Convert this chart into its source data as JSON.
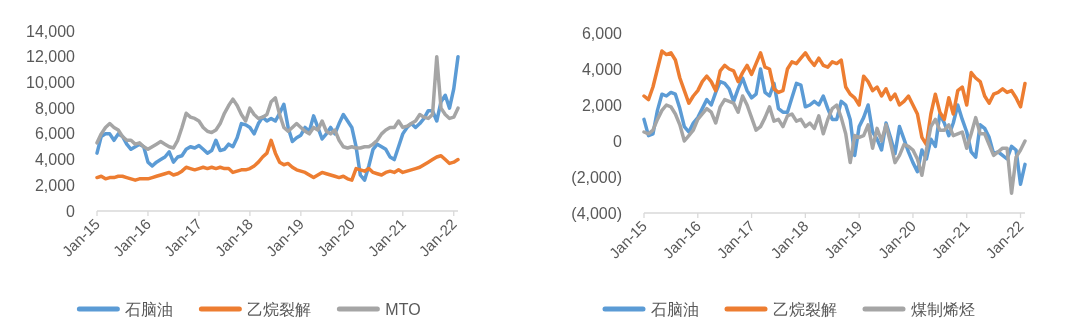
{
  "chart_data": [
    {
      "type": "line",
      "legend": "bottom",
      "x": [
        "2015-01",
        "2015-02",
        "2015-03",
        "2015-04",
        "2015-05",
        "2015-06",
        "2015-07",
        "2015-08",
        "2015-09",
        "2015-10",
        "2015-11",
        "2015-12",
        "2016-01",
        "2016-02",
        "2016-03",
        "2016-04",
        "2016-05",
        "2016-06",
        "2016-07",
        "2016-08",
        "2016-09",
        "2016-10",
        "2016-11",
        "2016-12",
        "2017-01",
        "2017-02",
        "2017-03",
        "2017-04",
        "2017-05",
        "2017-06",
        "2017-07",
        "2017-08",
        "2017-09",
        "2017-10",
        "2017-11",
        "2017-12",
        "2018-01",
        "2018-02",
        "2018-03",
        "2018-04",
        "2018-05",
        "2018-06",
        "2018-07",
        "2018-08",
        "2018-09",
        "2018-10",
        "2018-11",
        "2018-12",
        "2019-01",
        "2019-02",
        "2019-03",
        "2019-04",
        "2019-05",
        "2019-06",
        "2019-07",
        "2019-08",
        "2019-09",
        "2019-10",
        "2019-11",
        "2019-12",
        "2020-01",
        "2020-02",
        "2020-03",
        "2020-04",
        "2020-05",
        "2020-06",
        "2020-07",
        "2020-08",
        "2020-09",
        "2020-10",
        "2020-11",
        "2020-12",
        "2021-01",
        "2021-02",
        "2021-03",
        "2021-04",
        "2021-05",
        "2021-06",
        "2021-07",
        "2021-08",
        "2021-09",
        "2021-10",
        "2021-11",
        "2021-12",
        "2022-01",
        "2022-02"
      ],
      "xlim": [
        "2015-01",
        "2022-02"
      ],
      "xticks": [
        {
          "value": "2015-01",
          "label": "Jan-15"
        },
        {
          "value": "2016-01",
          "label": "Jan-16"
        },
        {
          "value": "2017-01",
          "label": "Jan-17"
        },
        {
          "value": "2018-01",
          "label": "Jan-18"
        },
        {
          "value": "2019-01",
          "label": "Jan-19"
        },
        {
          "value": "2020-01",
          "label": "Jan-20"
        },
        {
          "value": "2021-01",
          "label": "Jan-21"
        },
        {
          "value": "2022-01",
          "label": "Jan-22"
        }
      ],
      "ylim": [
        0,
        14000
      ],
      "yticks": [
        {
          "value": 0,
          "label": "0"
        },
        {
          "value": 2000,
          "label": "2,000"
        },
        {
          "value": 4000,
          "label": "4,000"
        },
        {
          "value": 6000,
          "label": "6,000"
        },
        {
          "value": 8000,
          "label": "8,000"
        },
        {
          "value": 10000,
          "label": "10,000"
        },
        {
          "value": 12000,
          "label": "12,000"
        },
        {
          "value": 14000,
          "label": "14,000"
        }
      ],
      "series": [
        {
          "name": "石脑油",
          "color": "#5b9bd5",
          "values": [
            4500,
            5800,
            6000,
            6000,
            5500,
            6000,
            5800,
            5200,
            4800,
            5000,
            5200,
            5000,
            3800,
            3500,
            3800,
            4000,
            4200,
            4600,
            3800,
            4200,
            4300,
            4800,
            5000,
            4900,
            5100,
            4800,
            4500,
            4700,
            5500,
            4700,
            4800,
            5200,
            5000,
            5700,
            6800,
            6700,
            6500,
            6000,
            6800,
            7300,
            7000,
            7200,
            7000,
            7600,
            8300,
            6500,
            5400,
            5700,
            5900,
            6500,
            6200,
            7400,
            6500,
            5600,
            6000,
            6500,
            6000,
            6800,
            7500,
            7000,
            6500,
            5000,
            2800,
            2400,
            3500,
            4800,
            5200,
            5000,
            4800,
            4200,
            4000,
            5000,
            6000,
            6500,
            6800,
            6500,
            6800,
            7200,
            7800,
            7800,
            7000,
            8500,
            9000,
            8000,
            9500,
            12000
          ]
        },
        {
          "name": "乙烷裂解",
          "color": "#ed7d31",
          "values": [
            2600,
            2700,
            2500,
            2600,
            2600,
            2700,
            2700,
            2600,
            2500,
            2400,
            2500,
            2500,
            2500,
            2600,
            2700,
            2800,
            2900,
            3000,
            2800,
            2900,
            3100,
            3400,
            3300,
            3200,
            3300,
            3400,
            3300,
            3400,
            3300,
            3400,
            3300,
            3300,
            3000,
            3100,
            3200,
            3200,
            3300,
            3500,
            3800,
            4200,
            4500,
            5500,
            4500,
            3800,
            3600,
            3700,
            3400,
            3200,
            3100,
            3000,
            2800,
            2600,
            2800,
            3000,
            2900,
            2800,
            2700,
            2600,
            2700,
            2500,
            2400,
            3300,
            3200,
            3100,
            3300,
            3000,
            2900,
            2800,
            3000,
            3100,
            3000,
            3200,
            3000,
            3100,
            3200,
            3300,
            3400,
            3600,
            3800,
            4000,
            4200,
            4300,
            4000,
            3700,
            3800,
            4000
          ]
        },
        {
          "name": "MTO",
          "color": "#a5a5a5",
          "values": [
            5300,
            6000,
            6500,
            6800,
            6500,
            6300,
            5800,
            5500,
            5500,
            5200,
            5300,
            5000,
            4800,
            5000,
            5200,
            5400,
            5200,
            5000,
            4900,
            5500,
            6500,
            7600,
            7300,
            7200,
            7000,
            6500,
            6200,
            6100,
            6300,
            6800,
            7600,
            8200,
            8700,
            8200,
            7500,
            7000,
            8000,
            7500,
            7200,
            7300,
            7500,
            8500,
            8800,
            7500,
            6500,
            6200,
            6500,
            6800,
            6500,
            6200,
            6000,
            6500,
            6300,
            7000,
            6200,
            6000,
            6300,
            5500,
            5000,
            4900,
            5000,
            4900,
            4900,
            5000,
            5000,
            5200,
            5500,
            6000,
            6300,
            6500,
            6500,
            7000,
            6500,
            6600,
            6800,
            7000,
            7500,
            7300,
            7200,
            7500,
            12000,
            8000,
            7500,
            7200,
            7300,
            8000
          ]
        }
      ]
    },
    {
      "type": "line",
      "legend": "bottom",
      "x": [
        "2015-01",
        "2015-02",
        "2015-03",
        "2015-04",
        "2015-05",
        "2015-06",
        "2015-07",
        "2015-08",
        "2015-09",
        "2015-10",
        "2015-11",
        "2015-12",
        "2016-01",
        "2016-02",
        "2016-03",
        "2016-04",
        "2016-05",
        "2016-06",
        "2016-07",
        "2016-08",
        "2016-09",
        "2016-10",
        "2016-11",
        "2016-12",
        "2017-01",
        "2017-02",
        "2017-03",
        "2017-04",
        "2017-05",
        "2017-06",
        "2017-07",
        "2017-08",
        "2017-09",
        "2017-10",
        "2017-11",
        "2017-12",
        "2018-01",
        "2018-02",
        "2018-03",
        "2018-04",
        "2018-05",
        "2018-06",
        "2018-07",
        "2018-08",
        "2018-09",
        "2018-10",
        "2018-11",
        "2018-12",
        "2019-01",
        "2019-02",
        "2019-03",
        "2019-04",
        "2019-05",
        "2019-06",
        "2019-07",
        "2019-08",
        "2019-09",
        "2019-10",
        "2019-11",
        "2019-12",
        "2020-01",
        "2020-02",
        "2020-03",
        "2020-04",
        "2020-05",
        "2020-06",
        "2020-07",
        "2020-08",
        "2020-09",
        "2020-10",
        "2020-11",
        "2020-12",
        "2021-01",
        "2021-02",
        "2021-03",
        "2021-04",
        "2021-05",
        "2021-06",
        "2021-07",
        "2021-08",
        "2021-09",
        "2021-10",
        "2021-11",
        "2021-12",
        "2022-01",
        "2022-02"
      ],
      "xlim": [
        "2015-01",
        "2022-02"
      ],
      "xticks": [
        {
          "value": "2015-01",
          "label": "Jan-15"
        },
        {
          "value": "2016-01",
          "label": "Jan-16"
        },
        {
          "value": "2017-01",
          "label": "Jan-17"
        },
        {
          "value": "2018-01",
          "label": "Jan-18"
        },
        {
          "value": "2019-01",
          "label": "Jan-19"
        },
        {
          "value": "2020-01",
          "label": "Jan-20"
        },
        {
          "value": "2021-01",
          "label": "Jan-21"
        },
        {
          "value": "2022-01",
          "label": "Jan-22"
        }
      ],
      "ylim": [
        -4000,
        6000
      ],
      "yticks": [
        {
          "value": -4000,
          "label": "(4,000)"
        },
        {
          "value": -2000,
          "label": "(2,000)"
        },
        {
          "value": 0,
          "label": "0"
        },
        {
          "value": 2000,
          "label": "2,000"
        },
        {
          "value": 4000,
          "label": "4,000"
        },
        {
          "value": 6000,
          "label": "6,000"
        }
      ],
      "series": [
        {
          "name": "石脑油",
          "color": "#5b9bd5",
          "values": [
            1200,
            300,
            400,
            1700,
            2600,
            2500,
            2700,
            2600,
            1800,
            800,
            500,
            1000,
            1300,
            1800,
            2300,
            2000,
            2700,
            3300,
            3200,
            2900,
            2200,
            2900,
            3500,
            2800,
            2400,
            2600,
            4000,
            2700,
            2500,
            3200,
            1800,
            1600,
            1600,
            2400,
            3200,
            3100,
            1900,
            2000,
            2200,
            2000,
            2500,
            1800,
            1200,
            1200,
            2200,
            2000,
            1200,
            -800,
            800,
            1300,
            2000,
            500,
            100,
            -500,
            1000,
            200,
            -700,
            800,
            100,
            -600,
            -1200,
            -1700,
            -500,
            -1000,
            100,
            -300,
            1500,
            1000,
            300,
            1000,
            2000,
            1200,
            500,
            -600,
            -900,
            900,
            700,
            200,
            -700,
            -600,
            -800,
            -1000,
            -300,
            -500,
            -2400,
            -1300
          ]
        },
        {
          "name": "乙烷裂解",
          "color": "#ed7d31",
          "values": [
            2500,
            2300,
            3000,
            4000,
            5000,
            4800,
            4900,
            4500,
            3500,
            2800,
            2100,
            2500,
            2800,
            3300,
            3600,
            3300,
            2800,
            3900,
            4200,
            4000,
            3900,
            3300,
            3800,
            4200,
            3700,
            4300,
            4900,
            4100,
            4000,
            2900,
            2700,
            2800,
            4000,
            4400,
            4300,
            4600,
            4900,
            4500,
            4200,
            4600,
            4200,
            4100,
            4400,
            4300,
            4500,
            3000,
            2600,
            2400,
            2000,
            3600,
            3300,
            2800,
            3000,
            2500,
            2900,
            2300,
            2600,
            2000,
            2200,
            2500,
            2000,
            1500,
            200,
            -200,
            1500,
            2600,
            1600,
            1200,
            2400,
            1500,
            2800,
            3000,
            2000,
            3800,
            3500,
            3300,
            2500,
            2100,
            2600,
            2700,
            2900,
            2700,
            2800,
            2400,
            1900,
            3200
          ]
        },
        {
          "name": "煤制烯烃",
          "color": "#a5a5a5",
          "values": [
            500,
            400,
            600,
            1200,
            1700,
            2000,
            1900,
            1500,
            900,
            0,
            300,
            600,
            1200,
            1500,
            1800,
            1600,
            1000,
            1900,
            2300,
            2200,
            2100,
            1600,
            2500,
            2000,
            1300,
            600,
            800,
            1300,
            1900,
            1100,
            1200,
            800,
            1400,
            1500,
            1100,
            1200,
            800,
            1000,
            700,
            1400,
            400,
            1200,
            1800,
            2000,
            1300,
            400,
            -1200,
            300,
            200,
            300,
            900,
            -400,
            700,
            0,
            900,
            -100,
            -1200,
            -800,
            -200,
            -300,
            -500,
            -1000,
            -1900,
            -500,
            800,
            1200,
            600,
            600,
            900,
            300,
            400,
            500,
            -400,
            400,
            1300,
            400,
            400,
            -200,
            -800,
            -600,
            -400,
            -400,
            -2900,
            -900,
            -500,
            0
          ]
        }
      ]
    }
  ]
}
